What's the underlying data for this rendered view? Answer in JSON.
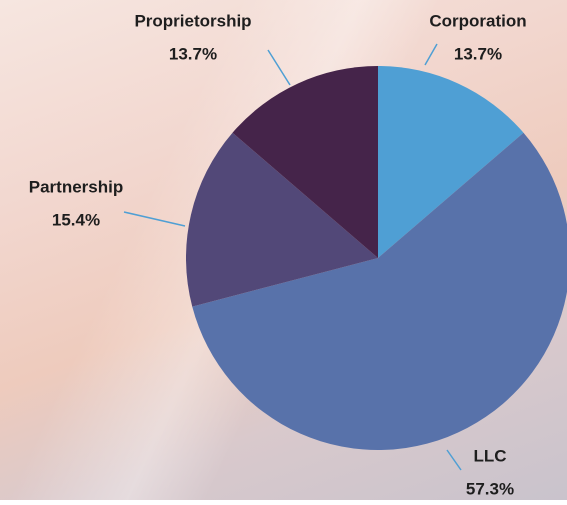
{
  "chart_data": {
    "type": "pie",
    "categories": [
      "Corporation",
      "LLC",
      "Partnership",
      "Proprietorship"
    ],
    "values": [
      13.7,
      57.3,
      15.4,
      13.7
    ],
    "value_labels": [
      "13.7%",
      "57.3%",
      "15.4%",
      "13.7%"
    ],
    "colors": [
      "#4f9fd4",
      "#5872aa",
      "#524878",
      "#45244a"
    ]
  }
}
